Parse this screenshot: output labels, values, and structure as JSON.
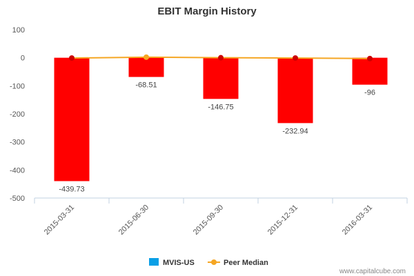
{
  "chart_data": {
    "type": "bar",
    "title": "EBIT Margin History",
    "categories": [
      "2015-03-31",
      "2015-06-30",
      "2015-09-30",
      "2015-12-31",
      "2016-03-31"
    ],
    "series": [
      {
        "name": "MVIS-US",
        "kind": "bar",
        "values": [
          -439.73,
          -68.51,
          -146.75,
          -232.94,
          -96
        ],
        "data_labels": [
          "-439.73",
          "-68.51",
          "-146.75",
          "-232.94",
          "-96"
        ],
        "bar_color": "#ff0000",
        "legend_color": "#0a9fe6"
      },
      {
        "name": "Peer Median",
        "kind": "line",
        "values": [
          -1,
          2,
          0,
          -1,
          -3
        ],
        "color": "#f5a623",
        "marker_colors": [
          "#cc0000",
          "#f5a623",
          "#cc0000",
          "#cc0000",
          "#cc0000"
        ]
      }
    ],
    "ylim": [
      -500,
      100
    ],
    "yticks": [
      "100",
      "0",
      "-100",
      "-200",
      "-300",
      "-400",
      "-500"
    ],
    "ytick_values": [
      100,
      0,
      -100,
      -200,
      -300,
      -400,
      -500
    ],
    "grid": false,
    "legend_position": "bottom"
  },
  "credit": "www.capitalcube.com"
}
